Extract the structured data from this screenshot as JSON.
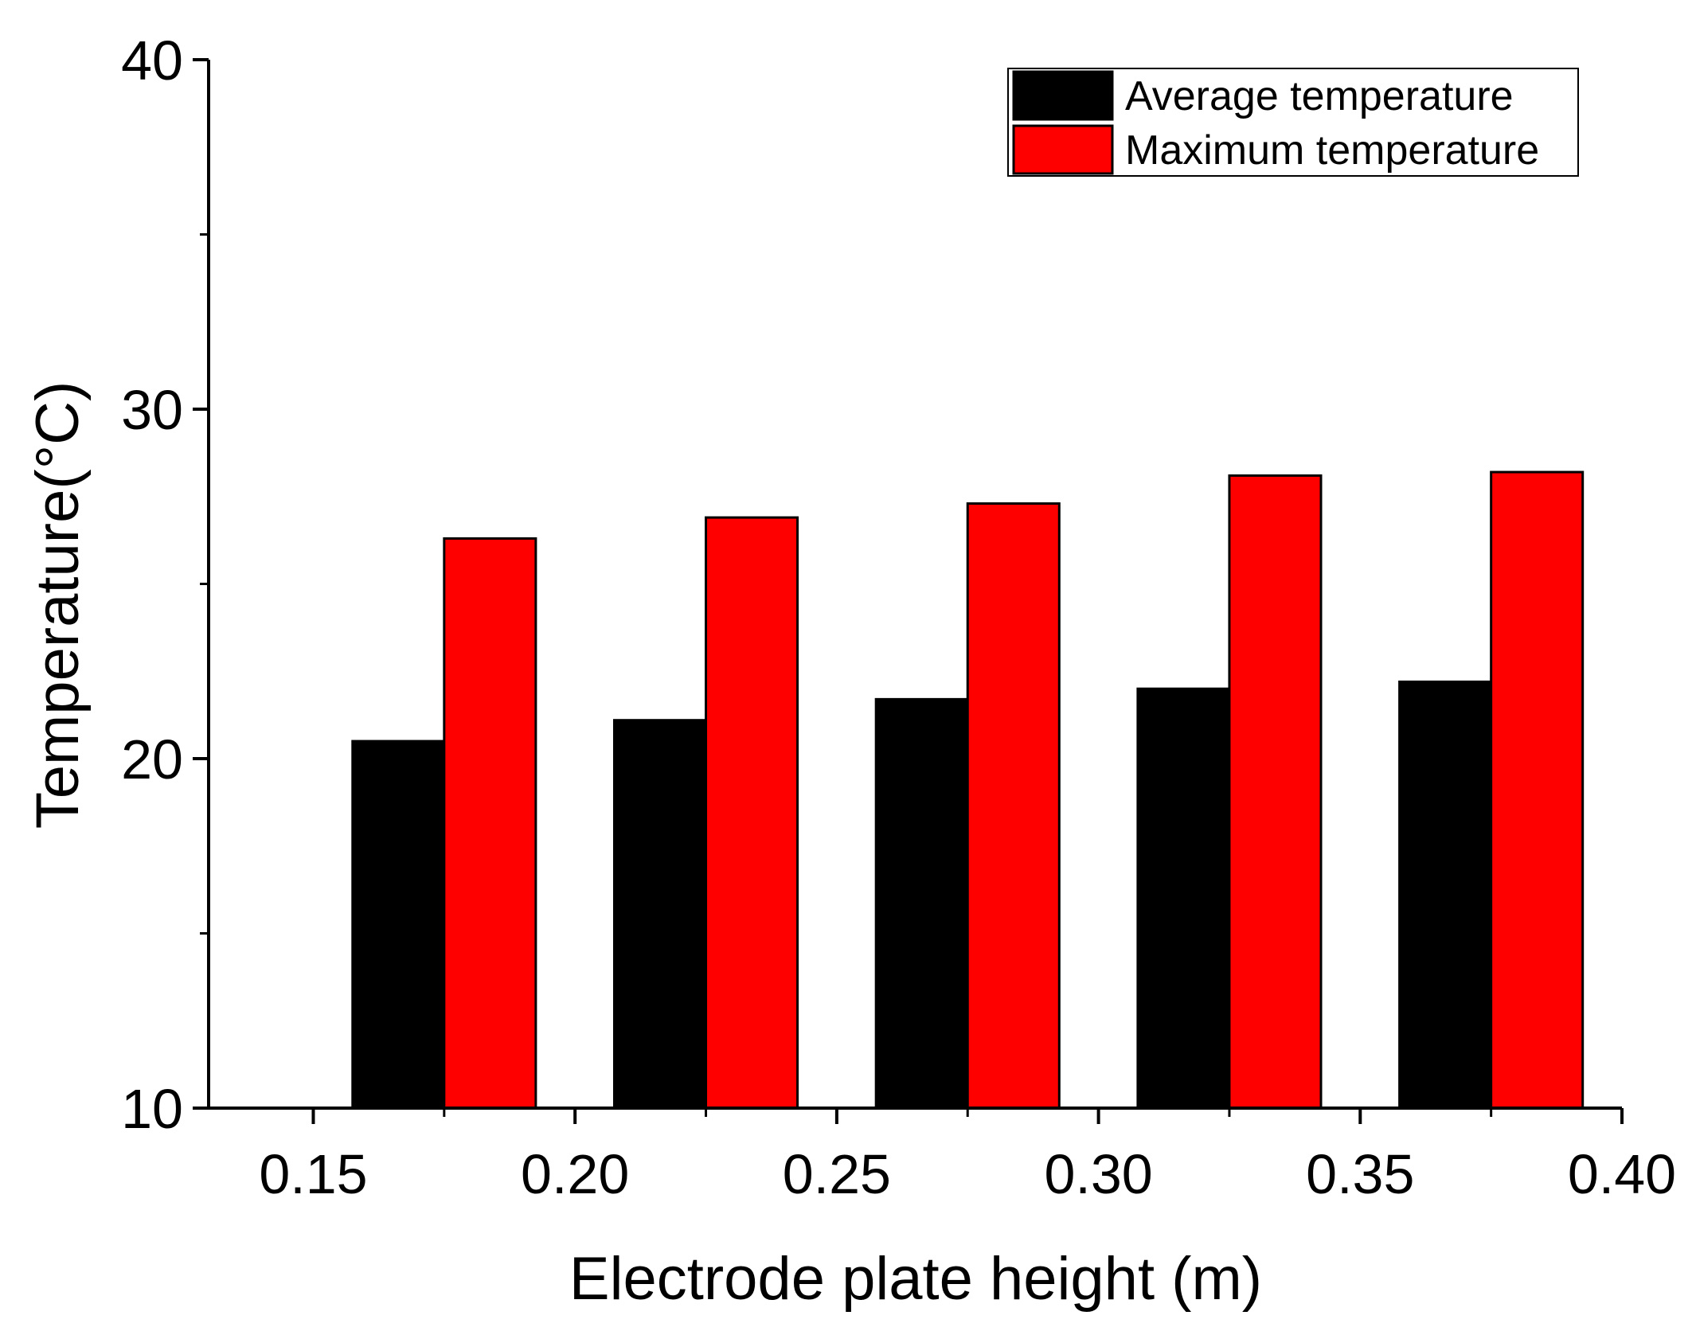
{
  "chart_data": {
    "type": "bar",
    "title": "",
    "xlabel": "Electrode plate height (m)",
    "ylabel": "Temperature(°C)",
    "categories": [
      "0.175",
      "0.225",
      "0.275",
      "0.325",
      "0.375"
    ],
    "category_x": [
      0.175,
      0.225,
      0.275,
      0.325,
      0.375
    ],
    "series": [
      {
        "name": "Average temperature",
        "color": "#000000",
        "values": [
          20.5,
          21.1,
          21.7,
          22.0,
          22.2
        ]
      },
      {
        "name": "Maximum temperature",
        "color": "#ff0000",
        "values": [
          26.3,
          26.9,
          27.3,
          28.1,
          28.2
        ]
      }
    ],
    "xlim": [
      0.13,
      0.4
    ],
    "ylim": [
      10,
      40
    ],
    "xticks": [
      0.15,
      0.2,
      0.25,
      0.3,
      0.35,
      0.4
    ],
    "xtick_labels": [
      "0.15",
      "0.20",
      "0.25",
      "0.30",
      "0.35",
      "0.40"
    ],
    "yticks": [
      10,
      20,
      30,
      40
    ],
    "ytick_labels": [
      "10",
      "20",
      "30",
      "40"
    ],
    "legend_position": "top-right",
    "grid": false
  }
}
